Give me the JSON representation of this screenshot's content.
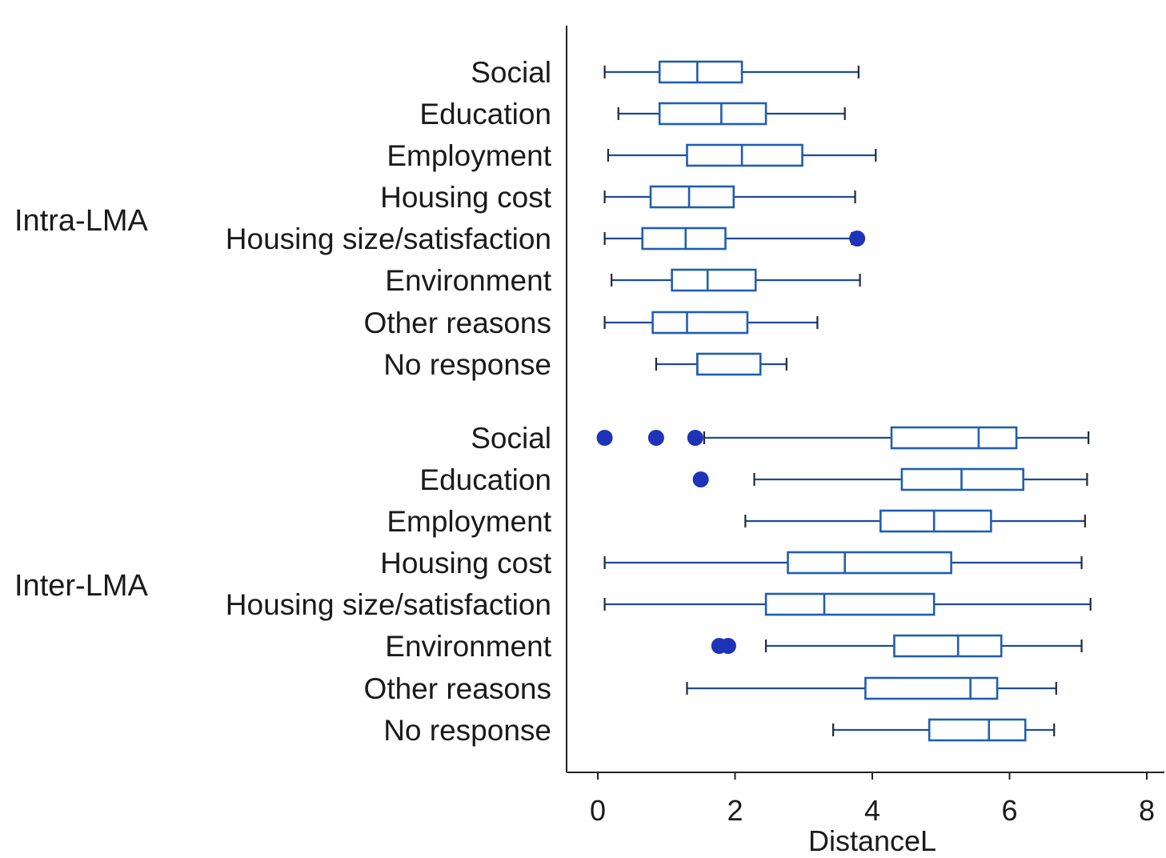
{
  "chart_data": {
    "type": "boxplot",
    "orientation": "horizontal",
    "xlabel": "DistanceL",
    "xlim": [
      -0.45,
      8.0
    ],
    "xticks": [
      0,
      2,
      4,
      6,
      8
    ],
    "xtick_labels": [
      "0",
      "2",
      "4",
      "6",
      "8"
    ],
    "groups": [
      {
        "name": "Intra-LMA",
        "boxes": [
          {
            "category": "Social",
            "min": 0.1,
            "q1": 0.9,
            "median": 1.45,
            "q3": 2.1,
            "max": 3.8,
            "outliers": []
          },
          {
            "category": "Education",
            "min": 0.3,
            "q1": 0.9,
            "median": 1.8,
            "q3": 2.45,
            "max": 3.6,
            "outliers": []
          },
          {
            "category": "Employment",
            "min": 0.15,
            "q1": 1.3,
            "median": 2.1,
            "q3": 2.98,
            "max": 4.05,
            "outliers": []
          },
          {
            "category": "Housing cost",
            "min": 0.1,
            "q1": 0.77,
            "median": 1.33,
            "q3": 1.98,
            "max": 3.75,
            "outliers": []
          },
          {
            "category": "Housing size/satisfaction",
            "min": 0.1,
            "q1": 0.65,
            "median": 1.28,
            "q3": 1.86,
            "max": 3.7,
            "outliers": [
              3.78
            ]
          },
          {
            "category": "Environment",
            "min": 0.2,
            "q1": 1.08,
            "median": 1.6,
            "q3": 2.3,
            "max": 3.82,
            "outliers": []
          },
          {
            "category": "Other reasons",
            "min": 0.1,
            "q1": 0.8,
            "median": 1.3,
            "q3": 2.18,
            "max": 3.2,
            "outliers": []
          },
          {
            "category": "No response",
            "min": 0.85,
            "q1": 1.45,
            "median": 1.45,
            "q3": 2.37,
            "max": 2.75,
            "outliers": []
          }
        ]
      },
      {
        "name": "Inter-LMA",
        "boxes": [
          {
            "category": "Social",
            "min": 1.55,
            "q1": 4.28,
            "median": 5.55,
            "q3": 6.1,
            "max": 7.15,
            "outliers": [
              0.1,
              0.85,
              1.42
            ]
          },
          {
            "category": "Education",
            "min": 2.28,
            "q1": 4.43,
            "median": 5.3,
            "q3": 6.2,
            "max": 7.13,
            "outliers": [
              1.5
            ]
          },
          {
            "category": "Employment",
            "min": 2.15,
            "q1": 4.12,
            "median": 4.9,
            "q3": 5.73,
            "max": 7.1,
            "outliers": []
          },
          {
            "category": "Housing cost",
            "min": 0.1,
            "q1": 2.77,
            "median": 3.6,
            "q3": 5.15,
            "max": 7.05,
            "outliers": []
          },
          {
            "category": "Housing size/satisfaction",
            "min": 0.1,
            "q1": 2.45,
            "median": 3.3,
            "q3": 4.9,
            "max": 7.18,
            "outliers": []
          },
          {
            "category": "Environment",
            "min": 2.45,
            "q1": 4.32,
            "median": 5.25,
            "q3": 5.88,
            "max": 7.05,
            "outliers": [
              1.77,
              1.9
            ]
          },
          {
            "category": "Other reasons",
            "min": 1.3,
            "q1": 3.9,
            "median": 5.43,
            "q3": 5.82,
            "max": 6.68,
            "outliers": []
          },
          {
            "category": "No response",
            "min": 3.43,
            "q1": 4.83,
            "median": 5.7,
            "q3": 6.23,
            "max": 6.65,
            "outliers": []
          }
        ]
      }
    ]
  }
}
